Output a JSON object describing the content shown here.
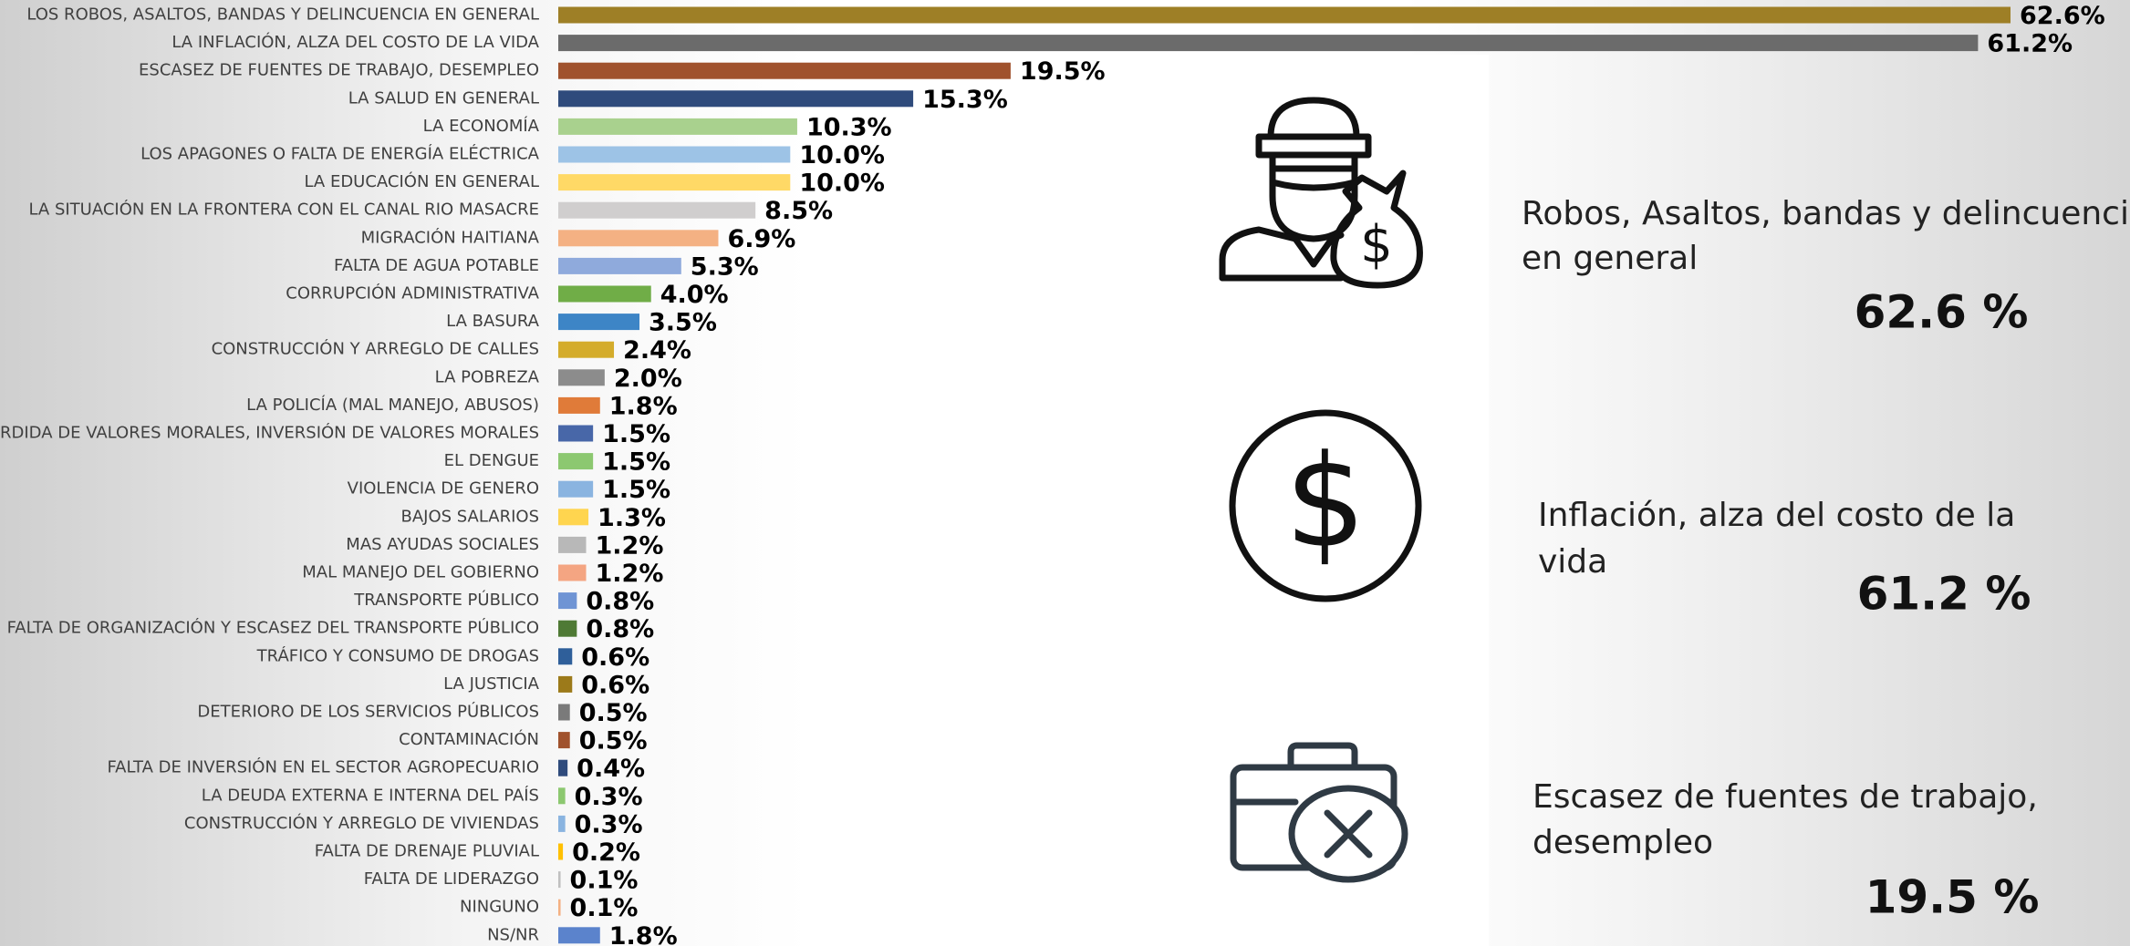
{
  "chart_data": {
    "type": "bar",
    "orientation": "horizontal",
    "categories": [
      "LOS ROBOS, ASALTOS, BANDAS Y DELINCUENCIA EN GENERAL",
      "LA INFLACIÓN, ALZA DEL COSTO DE LA VIDA",
      "ESCASEZ DE FUENTES DE TRABAJO, DESEMPLEO",
      "LA SALUD EN GENERAL",
      "LA ECONOMÍA",
      "LOS APAGONES O FALTA DE ENERGÍA ELÉCTRICA",
      "LA EDUCACIÓN EN GENERAL",
      "LA SITUACIÓN EN LA FRONTERA CON EL CANAL RIO MASACRE",
      "MIGRACIÓN HAITIANA",
      "FALTA DE AGUA POTABLE",
      "CORRUPCIÓN ADMINISTRATIVA",
      "LA BASURA",
      "CONSTRUCCIÓN Y ARREGLO DE CALLES",
      "LA POBREZA",
      "LA POLICÍA (MAL MANEJO, ABUSOS)",
      "PÉRDIDA DE VALORES MORALES, INVERSIÓN DE VALORES MORALES",
      "EL DENGUE",
      "VIOLENCIA DE GENERO",
      "BAJOS SALARIOS",
      "MAS AYUDAS SOCIALES",
      "MAL MANEJO DEL GOBIERNO",
      "TRANSPORTE PÚBLICO",
      "FALTA DE ORGANIZACIÓN Y ESCASEZ DEL TRANSPORTE PÚBLICO",
      "TRÁFICO Y CONSUMO DE DROGAS",
      "LA JUSTICIA",
      "DETERIORO DE LOS SERVICIOS PÚBLICOS",
      "CONTAMINACIÓN",
      "FALTA DE INVERSIÓN EN EL SECTOR AGROPECUARIO",
      "LA DEUDA EXTERNA E INTERNA DEL PAÍS",
      "CONSTRUCCIÓN Y ARREGLO DE VIVIENDAS",
      "FALTA DE DRENAJE PLUVIAL",
      "FALTA DE LIDERAZGO",
      "NINGUNO",
      "NS/NR"
    ],
    "values": [
      62.6,
      61.2,
      19.5,
      15.3,
      10.3,
      10.0,
      10.0,
      8.5,
      6.9,
      5.3,
      4.0,
      3.5,
      2.4,
      2.0,
      1.8,
      1.5,
      1.5,
      1.5,
      1.3,
      1.2,
      1.2,
      0.8,
      0.8,
      0.6,
      0.6,
      0.5,
      0.5,
      0.4,
      0.3,
      0.3,
      0.2,
      0.1,
      0.1,
      1.8
    ],
    "value_labels": [
      "62.6%",
      "61.2%",
      "19.5%",
      "15.3%",
      "10.3%",
      "10.0%",
      "10.0%",
      "8.5%",
      "6.9%",
      "5.3%",
      "4.0%",
      "3.5%",
      "2.4%",
      "2.0%",
      "1.8%",
      "1.5%",
      "1.5%",
      "1.5%",
      "1.3%",
      "1.2%",
      "1.2%",
      "0.8%",
      "0.8%",
      "0.6%",
      "0.6%",
      "0.5%",
      "0.5%",
      "0.4%",
      "0.3%",
      "0.3%",
      "0.2%",
      "0.1%",
      "0.1%",
      "1.8%"
    ],
    "colors": [
      "#9e7f26",
      "#6b6b6b",
      "#a0522d",
      "#2f4b7c",
      "#a9d18e",
      "#9dc3e6",
      "#ffd966",
      "#d0cece",
      "#f4b183",
      "#8faadc",
      "#70ad47",
      "#3d85c6",
      "#d4ac2b",
      "#8c8c8c",
      "#e07b39",
      "#4867a8",
      "#8cc870",
      "#8ab4e0",
      "#ffd54f",
      "#b8b8b8",
      "#f4a582",
      "#6f94d4",
      "#4f7a35",
      "#2f5f9a",
      "#9c7a1a",
      "#7a7a7a",
      "#a0522d",
      "#2f4b7c",
      "#8cc870",
      "#8ab4e0",
      "#ffc000",
      "#c0c0c0",
      "#f4b183",
      "#5b83cc"
    ]
  },
  "highlights": [
    {
      "lines": [
        "Robos, Asaltos, bandas y delincuencia",
        "en general"
      ],
      "value": "62.6 %"
    },
    {
      "lines": [
        "Inflación, alza del costo de la",
        "vida"
      ],
      "value": "61.2 %"
    },
    {
      "lines": [
        "Escasez de fuentes de trabajo,",
        "desempleo"
      ],
      "value": "19.5 %"
    }
  ]
}
